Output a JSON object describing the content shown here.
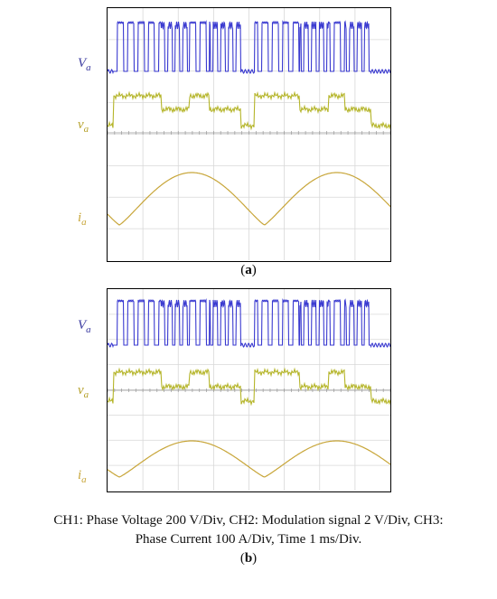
{
  "chart_data": [
    {
      "type": "line",
      "panel": "a",
      "series": [
        {
          "name": "V_a",
          "label": "V",
          "sub": "a",
          "color": "#3a3ad0"
        },
        {
          "name": "v_a",
          "label": "v",
          "sub": "a",
          "color": "#b5b52a"
        },
        {
          "name": "i_a",
          "label": "i",
          "sub": "a",
          "color": "#c8a63a"
        }
      ],
      "grid": true,
      "divisions": {
        "x": 8,
        "y": 8
      }
    },
    {
      "type": "line",
      "panel": "b",
      "series": [
        {
          "name": "V_a",
          "label": "V",
          "sub": "a",
          "color": "#3a3ad0"
        },
        {
          "name": "v_a",
          "label": "v",
          "sub": "a",
          "color": "#b5b52a"
        },
        {
          "name": "i_a",
          "label": "i",
          "sub": "a",
          "color": "#c8a63a"
        }
      ],
      "grid": true,
      "divisions": {
        "x": 8,
        "y": 8
      }
    }
  ],
  "panel_labels": {
    "a": "a",
    "b": "b"
  },
  "caption": {
    "line1": "CH1: Phase Voltage 200 V/Div, CH2: Modulation signal 2 V/Div, CH3:",
    "line2": "Phase Current 100 A/Div, Time 1 ms/Div."
  }
}
